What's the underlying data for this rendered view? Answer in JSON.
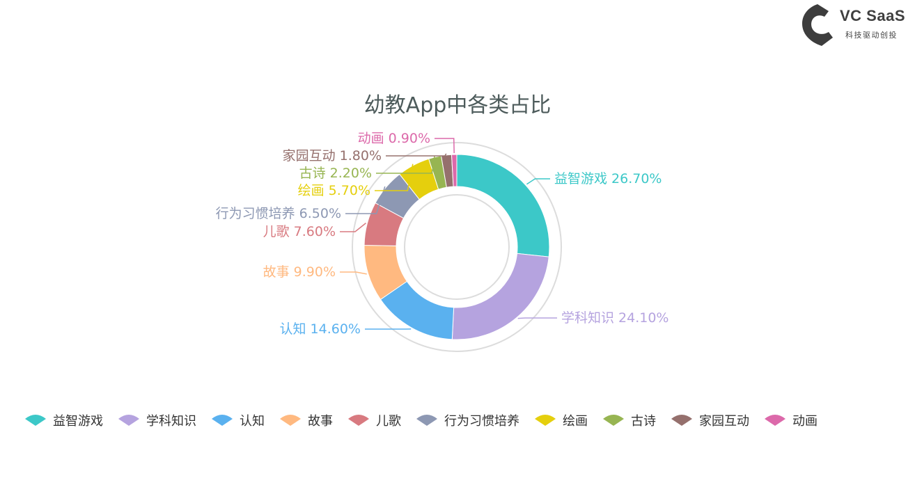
{
  "brand": {
    "name": "VC SaaS",
    "tagline": "科技驱动创投",
    "color": "#3d3d3d"
  },
  "chart_data": {
    "type": "pie",
    "title": "幼教App中各类占比",
    "legend_position": "bottom",
    "slices": [
      {
        "name": "益智游戏",
        "value": 26.7,
        "label": "益智游戏 26.70%",
        "color": "#3cc8c8"
      },
      {
        "name": "学科知识",
        "value": 24.1,
        "label": "学科知识 24.10%",
        "color": "#b5a3df"
      },
      {
        "name": "认知",
        "value": 14.6,
        "label": "认知 14.60%",
        "color": "#5ab1ef"
      },
      {
        "name": "故事",
        "value": 9.9,
        "label": "故事 9.90%",
        "color": "#ffb980"
      },
      {
        "name": "儿歌",
        "value": 7.6,
        "label": "儿歌 7.60%",
        "color": "#d87a80"
      },
      {
        "name": "行为习惯培养",
        "value": 6.5,
        "label": "行为习惯培养 6.50%",
        "color": "#8d98b3"
      },
      {
        "name": "绘画",
        "value": 5.7,
        "label": "绘画 5.70%",
        "color": "#e5cf0d"
      },
      {
        "name": "古诗",
        "value": 2.2,
        "label": "古诗 2.20%",
        "color": "#97b552"
      },
      {
        "name": "家园互动",
        "value": 1.8,
        "label": "家园互动 1.80%",
        "color": "#95706d"
      },
      {
        "name": "动画",
        "value": 0.9,
        "label": "动画 0.90%",
        "color": "#dc69aa"
      }
    ]
  }
}
